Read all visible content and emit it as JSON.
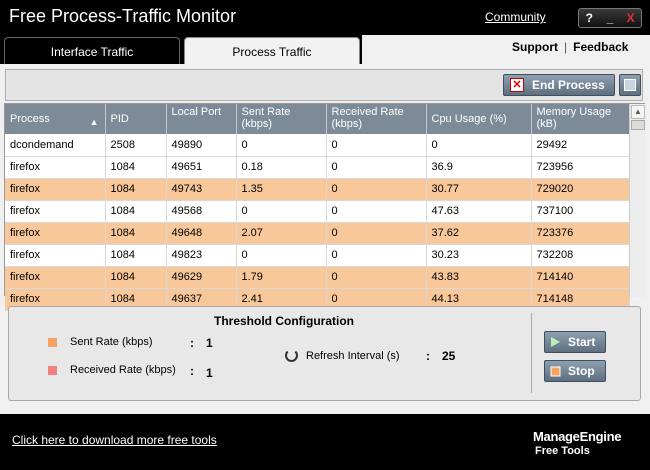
{
  "app": {
    "title": "Free Process-Traffic Monitor",
    "community_link": "Community"
  },
  "window_controls": {
    "help": "?",
    "minimize": "_",
    "close": "X"
  },
  "tabs": [
    {
      "label": "Interface Traffic",
      "active": false
    },
    {
      "label": "Process Traffic",
      "active": true
    }
  ],
  "header_links": {
    "support": "Support",
    "separator": "|",
    "feedback": "Feedback"
  },
  "toolbar": {
    "end_process_label": "End Process",
    "end_process_icon": "close-x-icon",
    "view_icon": "window-view-icon"
  },
  "table": {
    "headers": [
      "Process",
      "PID",
      "Local Port",
      "Sent Rate (kbps)",
      "Received Rate (kbps)",
      "Cpu Usage (%)",
      "Memory Usage (kB)"
    ],
    "sort_indicator": "▲",
    "highlight_color": "#f8c89a",
    "rows": [
      {
        "cells": [
          "dcondemand",
          "2508",
          "49890",
          "0",
          "0",
          "0",
          "29492"
        ],
        "highlight": false
      },
      {
        "cells": [
          "firefox",
          "1084",
          "49651",
          "0.18",
          "0",
          "36.9",
          "723956"
        ],
        "highlight": false
      },
      {
        "cells": [
          "firefox",
          "1084",
          "49743",
          "1.35",
          "0",
          "30.77",
          "729020"
        ],
        "highlight": true
      },
      {
        "cells": [
          "firefox",
          "1084",
          "49568",
          "0",
          "0",
          "47.63",
          "737100"
        ],
        "highlight": false
      },
      {
        "cells": [
          "firefox",
          "1084",
          "49648",
          "2.07",
          "0",
          "37.62",
          "723376"
        ],
        "highlight": true
      },
      {
        "cells": [
          "firefox",
          "1084",
          "49823",
          "0",
          "0",
          "30.23",
          "732208"
        ],
        "highlight": false
      },
      {
        "cells": [
          "firefox",
          "1084",
          "49629",
          "1.79",
          "0",
          "43.83",
          "714140"
        ],
        "highlight": true
      },
      {
        "cells": [
          "firefox",
          "1084",
          "49637",
          "2.41",
          "0",
          "44.13",
          "714148"
        ],
        "highlight": true
      }
    ]
  },
  "threshold": {
    "title": "Threshold Configuration",
    "sent_label": "Sent Rate (kbps)",
    "sent_value": "1",
    "sent_color": "#f4a460",
    "received_label": "Received Rate (kbps)",
    "received_value": "1",
    "received_color": "#f08080",
    "refresh_label": "Refresh Interval (s)",
    "refresh_value": "25",
    "colon": ":",
    "start_label": "Start",
    "stop_label": "Stop"
  },
  "footer": {
    "download_link": "Click here to download more free tools",
    "brand_name": "ManageEngine",
    "brand_sub": "Free Tools"
  }
}
